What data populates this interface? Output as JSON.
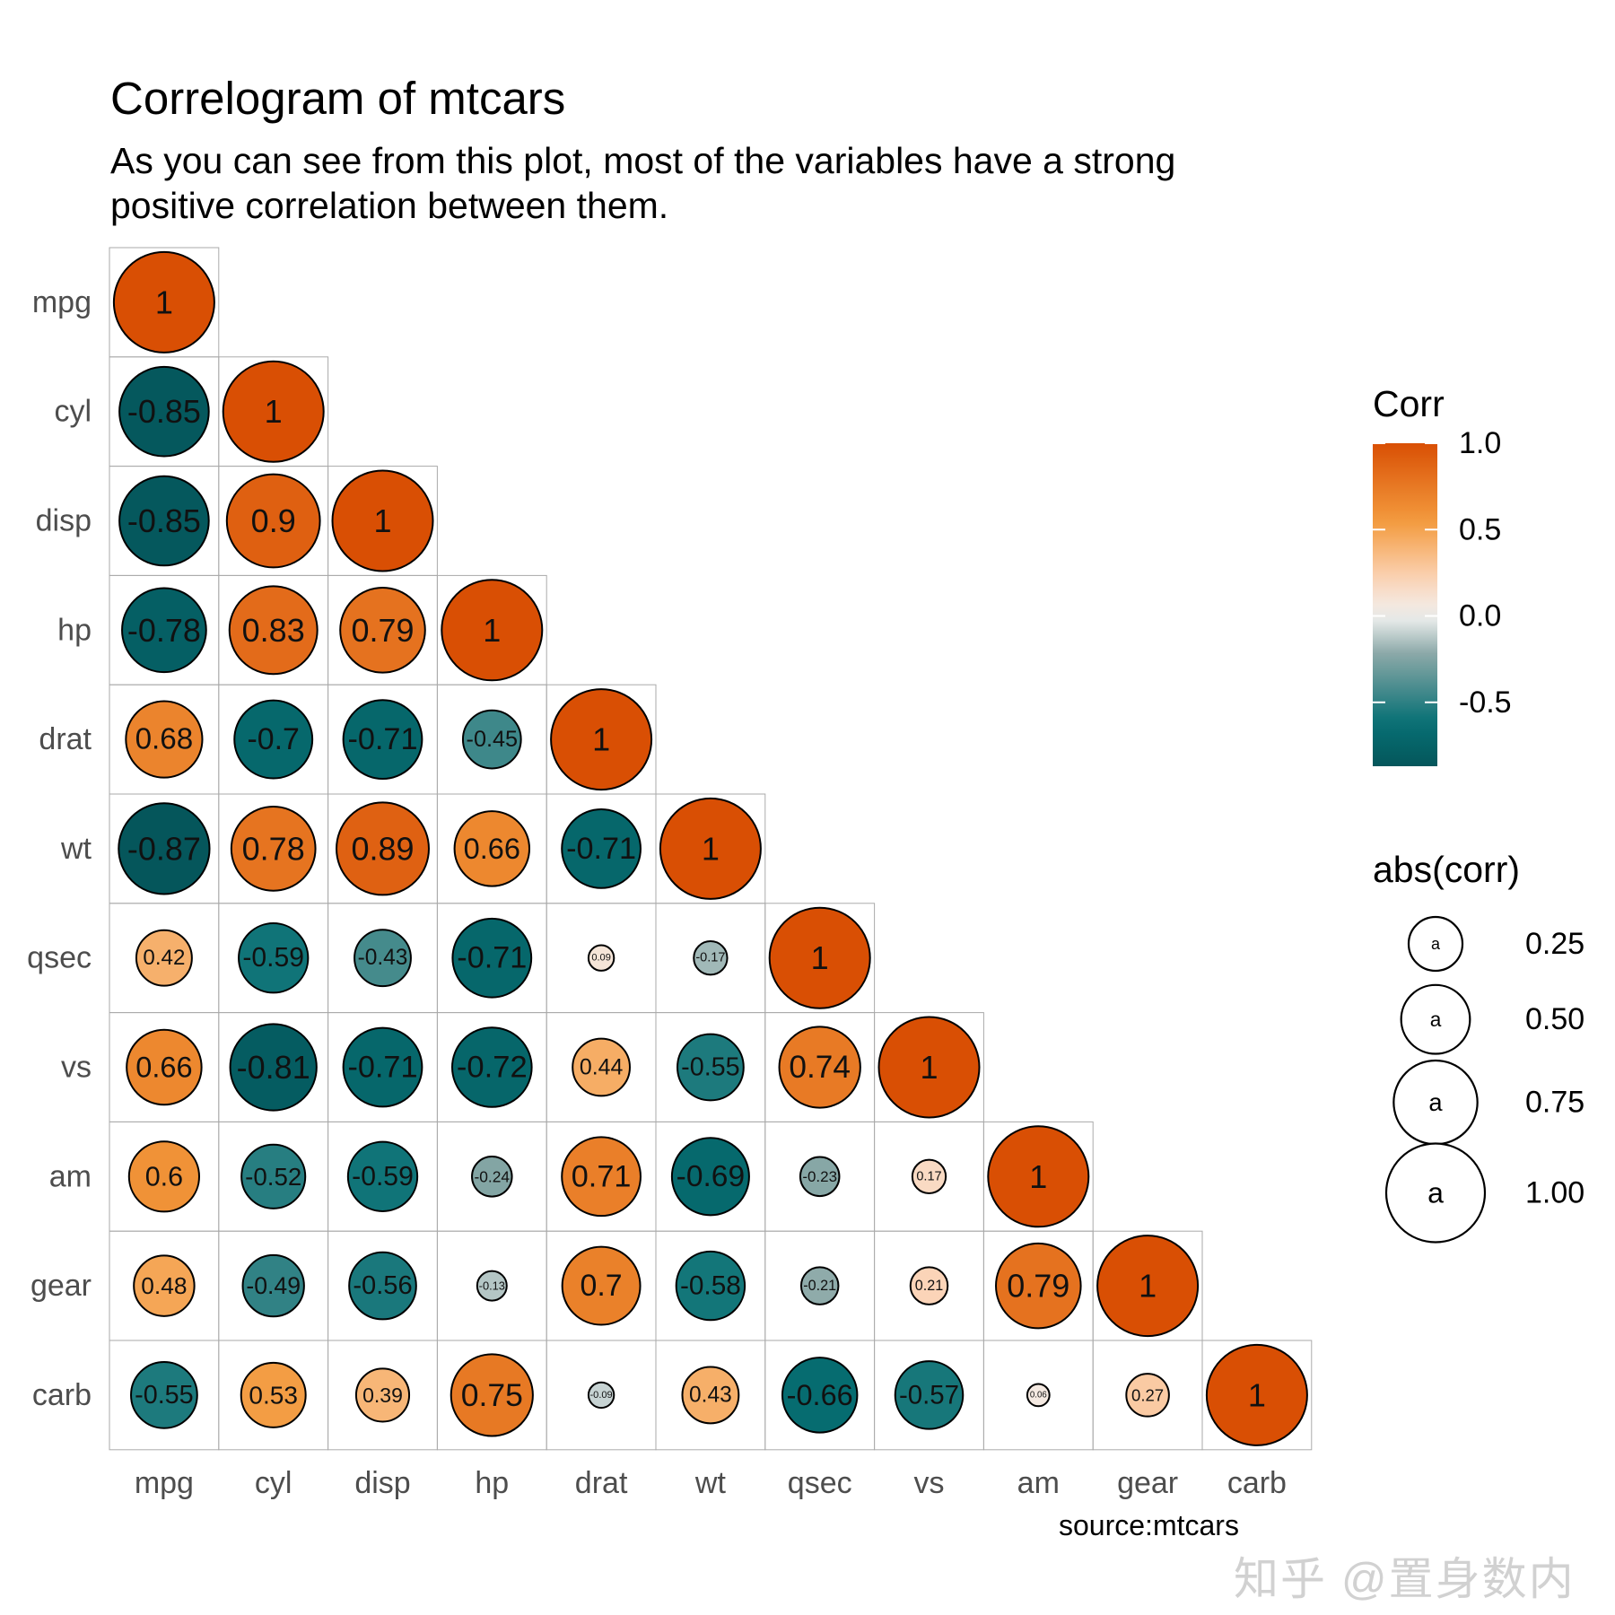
{
  "chart_data": {
    "type": "heatmap",
    "title": "Correlogram of mtcars",
    "subtitle": "As you can see from this plot, most of the variables have a strong\n positive correlation between them.",
    "caption": "source:mtcars",
    "variables": [
      "mpg",
      "cyl",
      "disp",
      "hp",
      "drat",
      "wt",
      "qsec",
      "vs",
      "am",
      "gear",
      "carb"
    ],
    "x_tick_labels": [
      "mpg",
      "cyl",
      "disp",
      "hp",
      "drat",
      "wt",
      "qsec",
      "vs",
      "am",
      "gear",
      "carb"
    ],
    "y_tick_labels": [
      "mpg",
      "cyl",
      "disp",
      "hp",
      "drat",
      "wt",
      "qsec",
      "vs",
      "am",
      "gear",
      "carb"
    ],
    "lower_triangle_labels": [
      [
        "1"
      ],
      [
        "-0.85",
        "1"
      ],
      [
        "-0.85",
        "0.9",
        "1"
      ],
      [
        "-0.78",
        "0.83",
        "0.79",
        "1"
      ],
      [
        "0.68",
        "-0.7",
        "-0.71",
        "-0.45",
        "1"
      ],
      [
        "-0.87",
        "0.78",
        "0.89",
        "0.66",
        "-0.71",
        "1"
      ],
      [
        "0.42",
        "-0.59",
        "-0.43",
        "-0.71",
        "0.09",
        "-0.17",
        "1"
      ],
      [
        "0.66",
        "-0.81",
        "-0.71",
        "-0.72",
        "0.44",
        "-0.55",
        "0.74",
        "1"
      ],
      [
        "0.6",
        "-0.52",
        "-0.59",
        "-0.24",
        "0.71",
        "-0.69",
        "-0.23",
        "0.17",
        "1"
      ],
      [
        "0.48",
        "-0.49",
        "-0.56",
        "-0.13",
        "0.7",
        "-0.58",
        "-0.21",
        "0.21",
        "0.79",
        "1"
      ],
      [
        "-0.55",
        "0.53",
        "0.39",
        "0.75",
        "-0.09",
        "0.43",
        "-0.66",
        "-0.57",
        "0.06",
        "0.27",
        "1"
      ]
    ],
    "color_scale": {
      "title": "Corr",
      "ticks": [
        "1.0",
        "0.5",
        "0.0",
        "-0.5"
      ],
      "tick_values": [
        1.0,
        0.5,
        0.0,
        -0.5
      ],
      "range": [
        -0.87,
        1.0
      ],
      "colors": {
        "high": "#d94f04",
        "mid_high": "#f39a3d",
        "low_positive": "#fbd3b5",
        "zero": "#f1f1f1",
        "low_negative": "#8aa8a7",
        "mid_low": "#067074",
        "low": "#05565b"
      }
    },
    "size_scale": {
      "title": "abs(corr)",
      "ticks": [
        "0.25",
        "0.50",
        "0.75",
        "1.00"
      ],
      "tick_values": [
        0.25,
        0.5,
        0.75,
        1.0
      ],
      "key_glyph_text": "a"
    },
    "legend_position": "right",
    "grid": false
  }
}
